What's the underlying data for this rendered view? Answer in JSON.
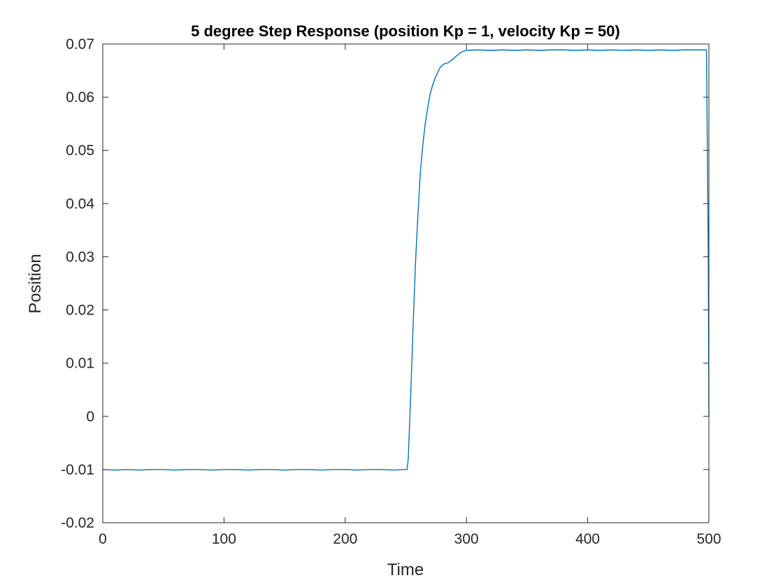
{
  "chart_data": {
    "type": "line",
    "title": "5 degree Step Response (position Kp = 1, velocity Kp = 50)",
    "xlabel": "Time",
    "ylabel": "Position",
    "xlim": [
      0,
      500
    ],
    "ylim": [
      -0.02,
      0.07
    ],
    "x_ticks": [
      0,
      100,
      200,
      300,
      400,
      500
    ],
    "y_ticks": [
      -0.02,
      -0.01,
      0,
      0.01,
      0.02,
      0.03,
      0.04,
      0.05,
      0.06,
      0.07
    ],
    "x_tick_labels": [
      "0",
      "100",
      "200",
      "300",
      "400",
      "500"
    ],
    "y_tick_labels": [
      "-0.02",
      "-0.01",
      "0",
      "0.01",
      "0.02",
      "0.03",
      "0.04",
      "0.05",
      "0.06",
      "0.07"
    ],
    "grid": false,
    "box": true,
    "series": [
      {
        "color": "#0072bd",
        "x": [
          0,
          10,
          20,
          30,
          40,
          50,
          60,
          70,
          80,
          90,
          100,
          110,
          120,
          130,
          140,
          150,
          160,
          170,
          180,
          190,
          200,
          210,
          220,
          230,
          240,
          248,
          251,
          252,
          254,
          256,
          258,
          260,
          262,
          264,
          266,
          268,
          270,
          272,
          274,
          276,
          278,
          280,
          282,
          285,
          288,
          291,
          294,
          297,
          300,
          310,
          320,
          330,
          340,
          350,
          360,
          370,
          380,
          390,
          400,
          410,
          420,
          430,
          440,
          450,
          460,
          470,
          480,
          490,
          498,
          499.5,
          500
        ],
        "y": [
          -0.01,
          -0.0101,
          -0.01,
          -0.0101,
          -0.01,
          -0.01,
          -0.0101,
          -0.01,
          -0.01,
          -0.0101,
          -0.01,
          -0.01,
          -0.0101,
          -0.01,
          -0.01,
          -0.0101,
          -0.01,
          -0.01,
          -0.0101,
          -0.01,
          -0.01,
          -0.0101,
          -0.01,
          -0.01,
          -0.0101,
          -0.01,
          -0.01,
          -0.008,
          0.004,
          0.017,
          0.029,
          0.038,
          0.046,
          0.051,
          0.055,
          0.058,
          0.0605,
          0.0622,
          0.0635,
          0.0645,
          0.0655,
          0.066,
          0.0663,
          0.0665,
          0.067,
          0.0676,
          0.0682,
          0.0686,
          0.0688,
          0.0689,
          0.0688,
          0.0689,
          0.0688,
          0.0689,
          0.0688,
          0.0689,
          0.0689,
          0.0688,
          0.0689,
          0.0688,
          0.0689,
          0.0688,
          0.0689,
          0.0688,
          0.0689,
          0.0688,
          0.0689,
          0.0689,
          0.0689,
          0.03,
          0.0
        ]
      }
    ]
  }
}
